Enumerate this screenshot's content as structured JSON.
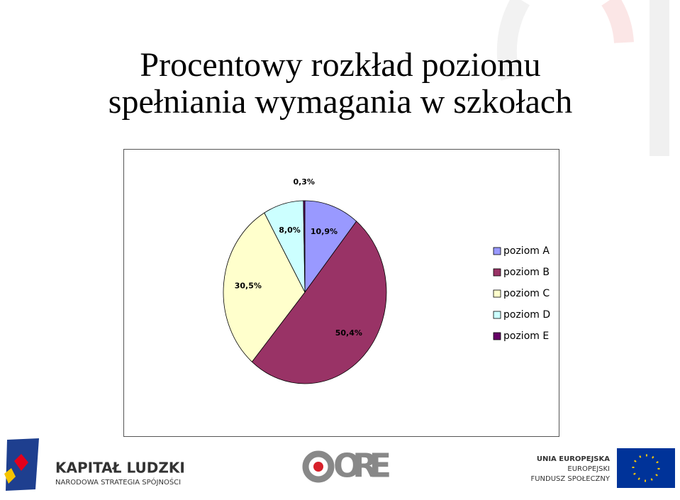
{
  "chart_data": {
    "type": "pie",
    "title": "Procentowy rozkład poziomu spełniania wymagania w szkołach",
    "categories": [
      "poziom A",
      "poziom B",
      "poziom C",
      "poziom D",
      "poziom E"
    ],
    "values": [
      10.9,
      50.4,
      30.5,
      8.0,
      0.3
    ],
    "value_labels": [
      "10,9%",
      "50,4%",
      "30,5%",
      "8,0%",
      "0,3%"
    ],
    "colors": [
      "#9999ff",
      "#993366",
      "#ffffcc",
      "#ccffff",
      "#660066"
    ],
    "legend": "right"
  },
  "footer": {
    "left_title": "KAPITAŁ LUDZKI",
    "left_subtitle": "NARODOWA STRATEGIA SPÓJNOŚCI",
    "center": "ORE",
    "right_1": "UNIA EUROPEJSKA",
    "right_2": "EUROPEJSKI",
    "right_3": "FUNDUSZ SPOŁECZNY"
  }
}
